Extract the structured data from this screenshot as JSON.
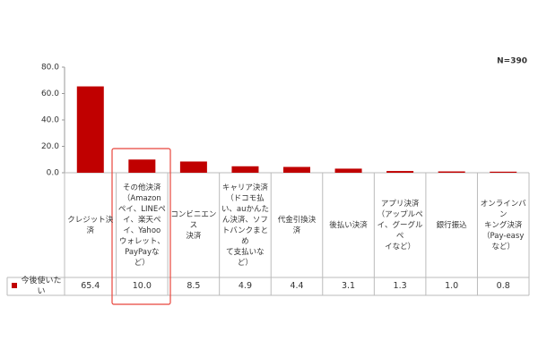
{
  "chart_data": {
    "type": "bar",
    "annotation": "N=390",
    "categories": [
      "クレジット決済",
      "その他決済\n（Amazon\nペイ、LINEペ\nイ、楽天ペ\nイ、Yahoo\nウォレット、\nPayPayな\nど）",
      "コンビニエンス\n決済",
      "キャリア決済\n（ドコモ払\nい、auかんた\nん決済、ソフ\nトバンクまとめ\nて支払いな\nど）",
      "代金引換決\n済",
      "後払い決済",
      "アプリ決済\n（アップルペ\nイ、グーグルペ\nイなど）",
      "銀行振込",
      "オンラインバン\nキング決済\n（Pay-easy\nなど）"
    ],
    "series": [
      {
        "name": "今後使いたい",
        "color": "#c00000",
        "values": [
          65.4,
          10.0,
          8.5,
          4.9,
          4.4,
          3.1,
          1.3,
          1.0,
          0.8
        ],
        "value_labels": [
          "65.4",
          "10.0",
          "8.5",
          "4.9",
          "4.4",
          "3.1",
          "1.3",
          "1.0",
          "0.8"
        ]
      }
    ],
    "ylim": [
      0,
      80
    ],
    "yticks": [
      {
        "value": 0,
        "label": "0.0"
      },
      {
        "value": 20,
        "label": "20.0"
      },
      {
        "value": 40,
        "label": "40.0"
      },
      {
        "value": 60,
        "label": "60.0"
      },
      {
        "value": 80,
        "label": "80.0"
      }
    ]
  }
}
